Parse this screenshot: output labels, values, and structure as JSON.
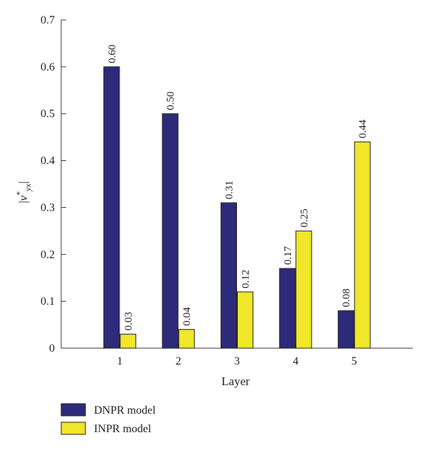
{
  "chart_data": {
    "type": "bar",
    "categories": [
      "1",
      "2",
      "3",
      "4",
      "5"
    ],
    "series": [
      {
        "name": "DNPR model",
        "values": [
          0.6,
          0.5,
          0.31,
          0.17,
          0.08
        ],
        "labels": [
          "0.60",
          "0.50",
          "0.31",
          "0.17",
          "0.08"
        ],
        "color": "#2e2a7a"
      },
      {
        "name": "INPR model",
        "values": [
          0.03,
          0.04,
          0.12,
          0.25,
          0.44
        ],
        "labels": [
          "0.03",
          "0.04",
          "0.12",
          "0.25",
          "0.44"
        ],
        "color": "#f0e62a"
      }
    ],
    "xlabel": "Layer",
    "ylabel": "|ν*yx|",
    "ylabel_parts": {
      "bar": "|",
      "nu": "ν",
      "sup": "*",
      "sub": "yx"
    },
    "ylim": [
      0,
      0.7
    ],
    "yticks": [
      "0",
      "0.1",
      "0.2",
      "0.3",
      "0.4",
      "0.5",
      "0.6",
      "0.7"
    ],
    "grid": false,
    "legend_position": "bottom-left"
  }
}
